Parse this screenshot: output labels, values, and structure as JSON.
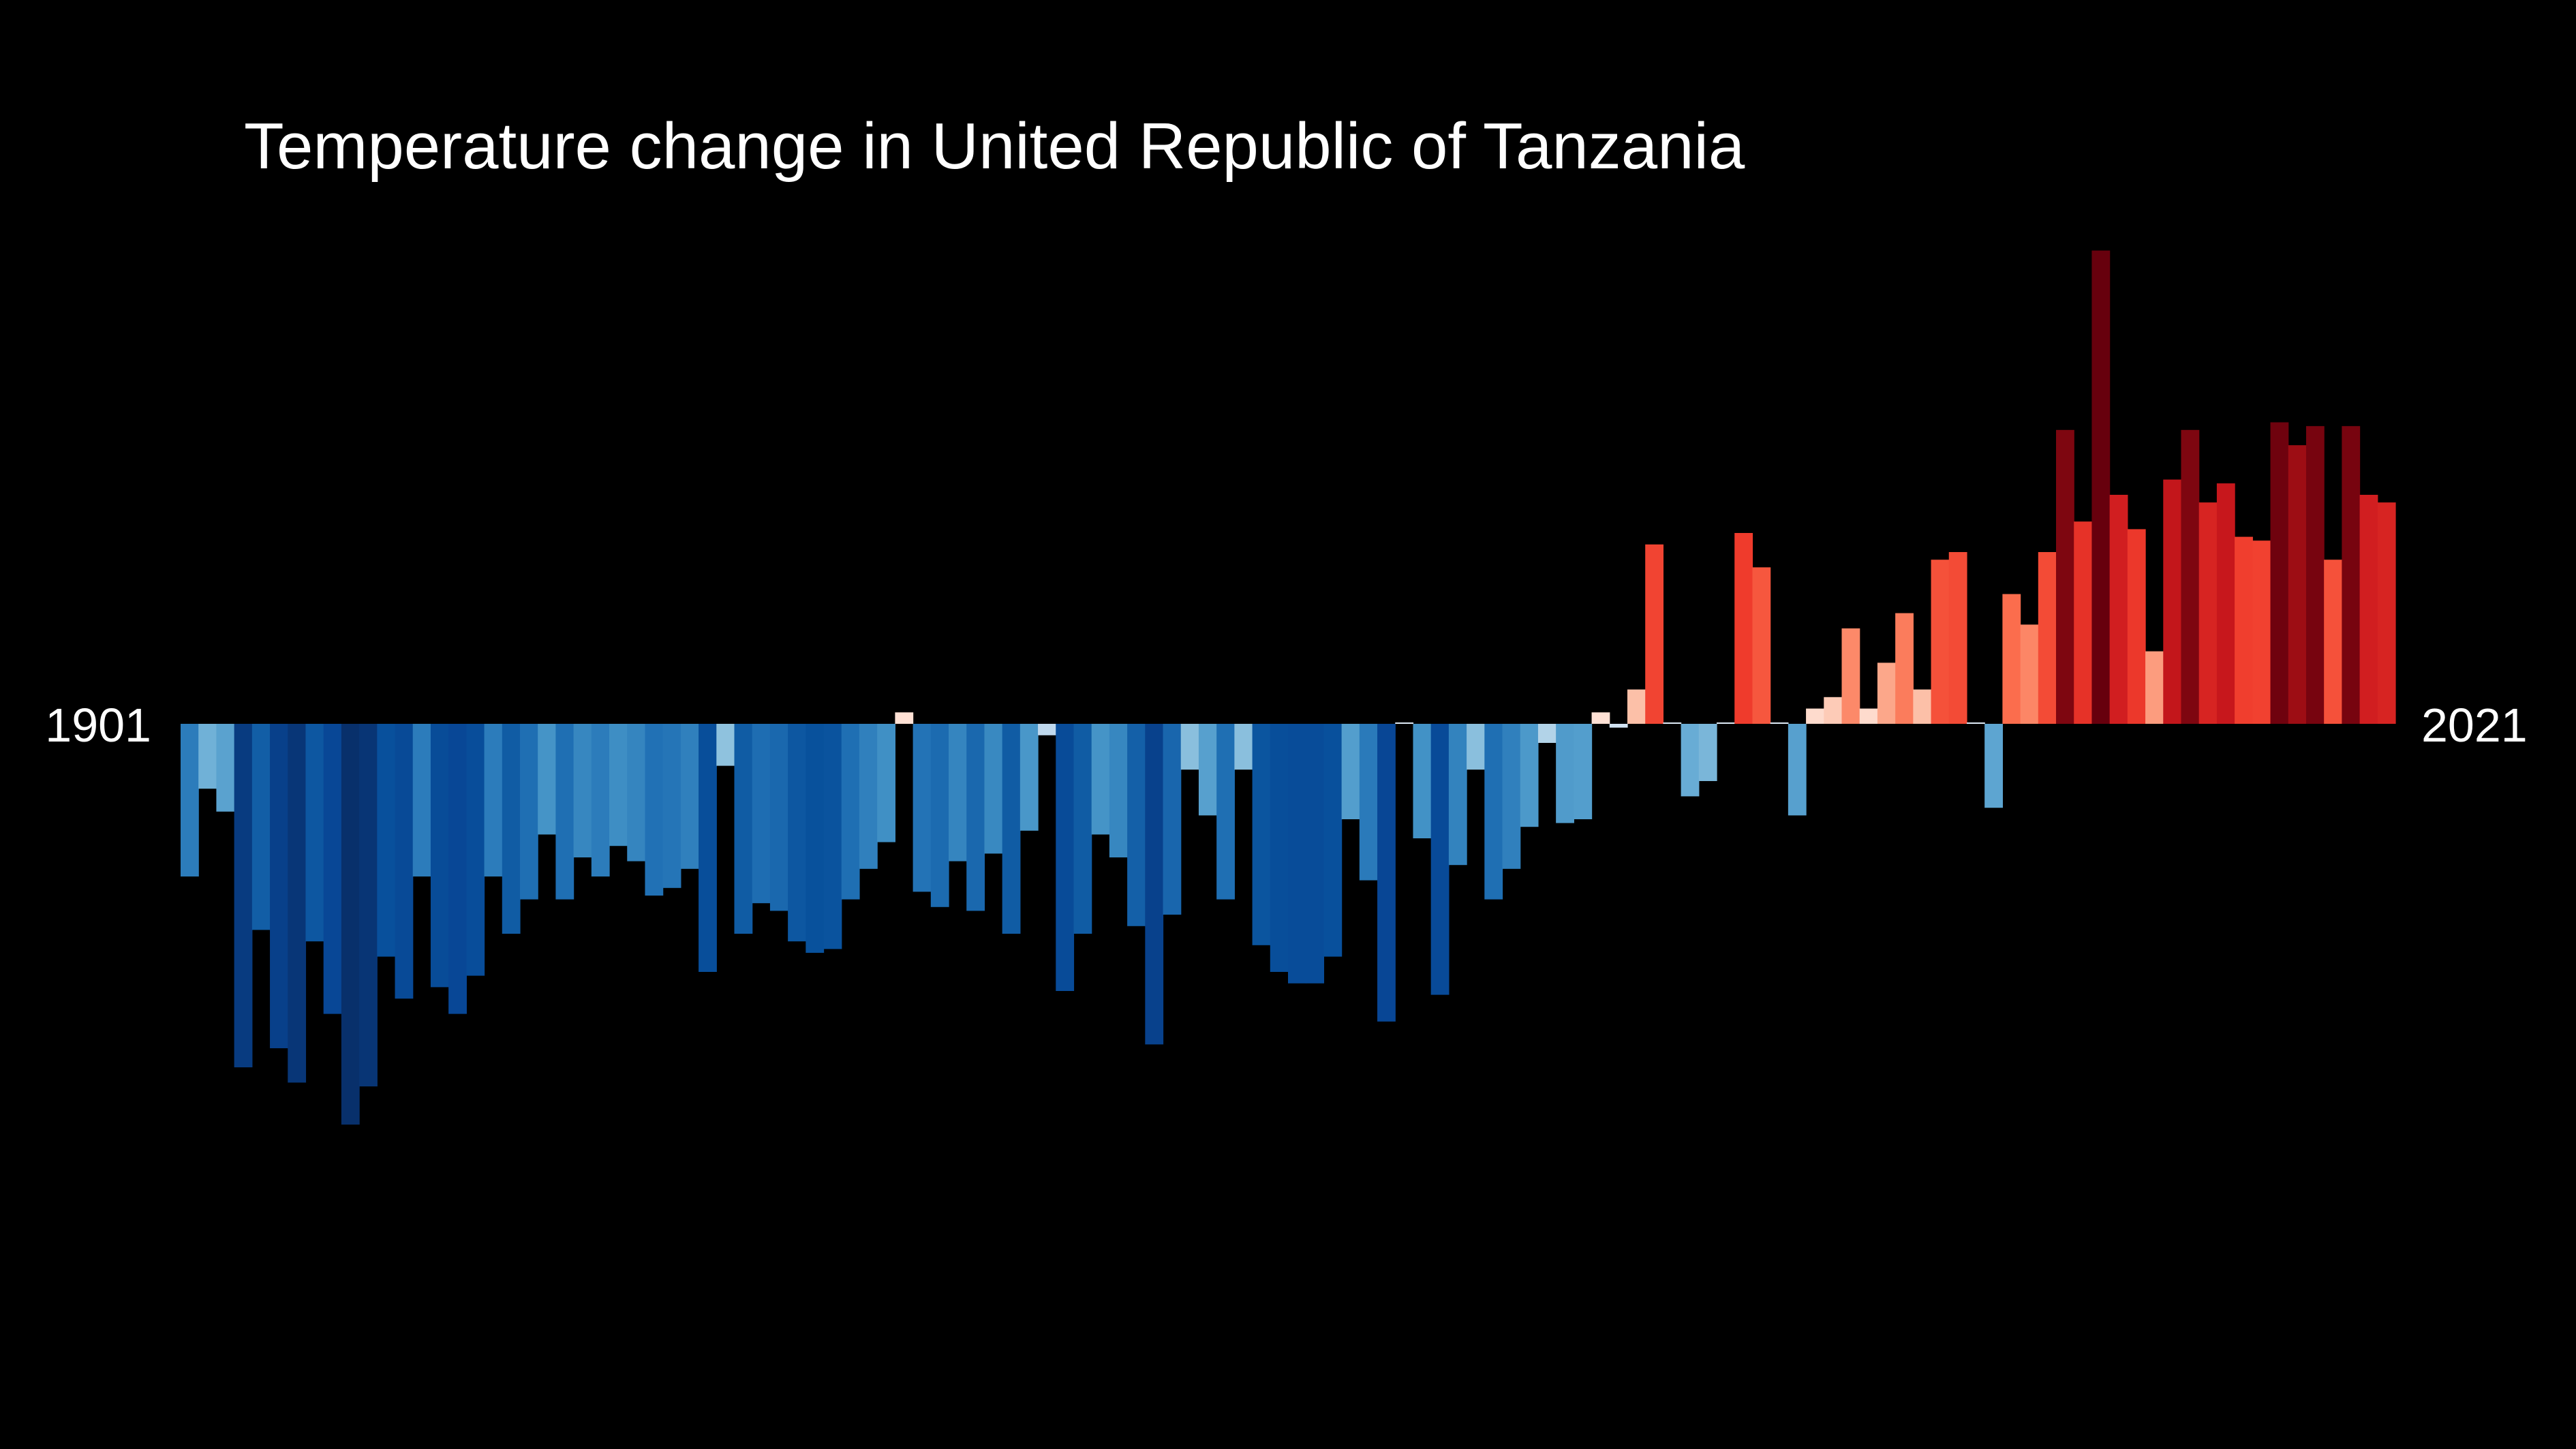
{
  "chart_data": {
    "type": "bar",
    "title": "Temperature change in United Republic of Tanzania",
    "start_label": "1901",
    "end_label": "2021",
    "x_start": 1901,
    "x_end": 2021,
    "ylim": [
      -1.0,
      1.2
    ],
    "values": [
      -0.4,
      -0.17,
      -0.23,
      -0.9,
      -0.54,
      -0.85,
      -0.94,
      -0.57,
      -0.76,
      -1.05,
      -0.95,
      -0.61,
      -0.72,
      -0.4,
      -0.69,
      -0.76,
      -0.66,
      -0.4,
      -0.55,
      -0.46,
      -0.29,
      -0.46,
      -0.35,
      -0.4,
      -0.32,
      -0.36,
      -0.45,
      -0.43,
      -0.38,
      -0.65,
      -0.11,
      -0.55,
      -0.47,
      -0.49,
      -0.57,
      -0.6,
      -0.59,
      -0.46,
      -0.38,
      -0.31,
      0.03,
      -0.44,
      -0.48,
      -0.36,
      -0.49,
      -0.34,
      -0.55,
      -0.28,
      -0.03,
      -0.7,
      -0.55,
      -0.29,
      -0.35,
      -0.53,
      -0.84,
      -0.5,
      -0.12,
      -0.24,
      -0.46,
      -0.12,
      -0.58,
      -0.65,
      -0.68,
      -0.68,
      -0.61,
      -0.25,
      -0.41,
      -0.78,
      0.0,
      -0.3,
      -0.71,
      -0.37,
      -0.12,
      -0.46,
      -0.38,
      -0.27,
      -0.05,
      -0.26,
      -0.25,
      0.03,
      -0.01,
      0.09,
      0.47,
      0.0,
      -0.19,
      -0.15,
      0.0,
      0.5,
      0.41,
      0.0,
      -0.24,
      0.04,
      0.07,
      0.25,
      0.04,
      0.16,
      0.29,
      0.09,
      0.43,
      0.45,
      0.0,
      -0.22,
      0.34,
      0.26,
      0.45,
      0.77,
      0.53,
      1.24,
      0.6,
      0.51,
      0.19,
      0.64,
      0.77,
      0.58,
      0.63,
      0.49,
      0.48,
      0.79,
      0.73,
      0.78,
      0.43,
      0.78,
      0.6,
      0.58
    ]
  }
}
